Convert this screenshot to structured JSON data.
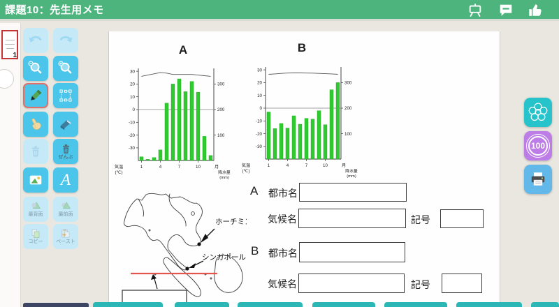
{
  "header": {
    "title": "課題10：先生用メモ",
    "icons": [
      "presentation-board-icon",
      "chat-icon",
      "thumbs-up-icon"
    ]
  },
  "thumbnails": {
    "page1_number": "1"
  },
  "toolbar": {
    "tools": [
      "undo",
      "redo",
      "zoom-out",
      "zoom-in",
      "pen",
      "select",
      "hand",
      "eraser",
      "delete",
      "delete-all",
      "image",
      "text",
      "send-to-back",
      "bring-to-front",
      "copy",
      "paste"
    ],
    "delete_all_label": "ぜんぶ",
    "text_tool_label": "A",
    "send_back_label": "最背面",
    "bring_front_label": "最前面",
    "copy_label": "コピー",
    "paste_label": "ペースト",
    "selected_tool": "pen"
  },
  "right_toolbar": {
    "icons": [
      "flower-stamp-icon",
      "score-100-stamp",
      "printer-icon"
    ],
    "score_stamp_label": "100"
  },
  "worksheet": {
    "answers": {
      "a_label": "A",
      "b_label": "B",
      "city_label": "都市名",
      "climate_label": "気候名",
      "symbol_label": "記号"
    },
    "map_labels": {
      "ho_chi_minh": "ホーチミン",
      "singapore": "シンガポール"
    },
    "annotation_colors": {
      "equator_line": "#e2544c"
    }
  },
  "colors": {
    "header_green": "#4db47e",
    "tool_blue": "#4cc5ea",
    "tool_blue_disabled": "#c6e9f8",
    "stamp_teal": "#27c3cb",
    "stamp_purple": "#bd7de7",
    "print_blue": "#62b8e9",
    "bottom_teal": "#2db6b6"
  },
  "chart_data": [
    {
      "type": "bar",
      "subtype": "climograph",
      "title": "A",
      "categories": [
        1,
        2,
        3,
        4,
        5,
        6,
        7,
        8,
        9,
        10,
        11,
        12
      ],
      "x_tick_labels": [
        "1",
        "4",
        "7",
        "10"
      ],
      "x_unit_label": "月",
      "left_axis_label": "気温",
      "left_axis_unit": "(℃)",
      "right_axis_label": "降水量",
      "right_axis_unit": "(mm)",
      "left_ticks": [
        30,
        20,
        10,
        0,
        -10,
        -20,
        -30
      ],
      "right_ticks": [
        300,
        200,
        100
      ],
      "left_range": [
        -40,
        30
      ],
      "right_range": [
        0,
        350
      ],
      "series": [
        {
          "name": "降水量(mm)",
          "type": "bar",
          "values": [
            15,
            5,
            12,
            42,
            225,
            300,
            320,
            270,
            310,
            268,
            95,
            20
          ]
        },
        {
          "name": "気温(℃)",
          "type": "line",
          "values": [
            26,
            27,
            28,
            29,
            28.5,
            27.5,
            27.5,
            27.5,
            27.5,
            27,
            26.5,
            26
          ]
        }
      ],
      "bar_color": "#2fca2f",
      "line_color": "#555555"
    },
    {
      "type": "bar",
      "subtype": "climograph",
      "title": "B",
      "categories": [
        1,
        2,
        3,
        4,
        5,
        6,
        7,
        8,
        9,
        10,
        11,
        12
      ],
      "x_tick_labels": [
        "1",
        "4",
        "7",
        "10"
      ],
      "x_unit_label": "月",
      "left_axis_label": "気温",
      "left_axis_unit": "(℃)",
      "right_axis_label": "降水量",
      "right_axis_unit": "(mm)",
      "left_ticks": [
        30,
        20,
        10,
        0,
        -10,
        -20,
        -30
      ],
      "right_ticks": [
        300,
        200,
        100
      ],
      "left_range": [
        -40,
        30
      ],
      "right_range": [
        0,
        350
      ],
      "series": [
        {
          "name": "降水量(mm)",
          "type": "bar",
          "values": [
            185,
            120,
            140,
            122,
            170,
            137,
            160,
            157,
            190,
            135,
            272,
            300
          ]
        },
        {
          "name": "気温(℃)",
          "type": "line",
          "values": [
            26.5,
            26.8,
            27.2,
            27.5,
            27.6,
            27.6,
            27.5,
            27.4,
            27.2,
            27,
            26.8,
            26.5
          ]
        }
      ],
      "bar_color": "#2fca2f",
      "line_color": "#555555"
    }
  ]
}
